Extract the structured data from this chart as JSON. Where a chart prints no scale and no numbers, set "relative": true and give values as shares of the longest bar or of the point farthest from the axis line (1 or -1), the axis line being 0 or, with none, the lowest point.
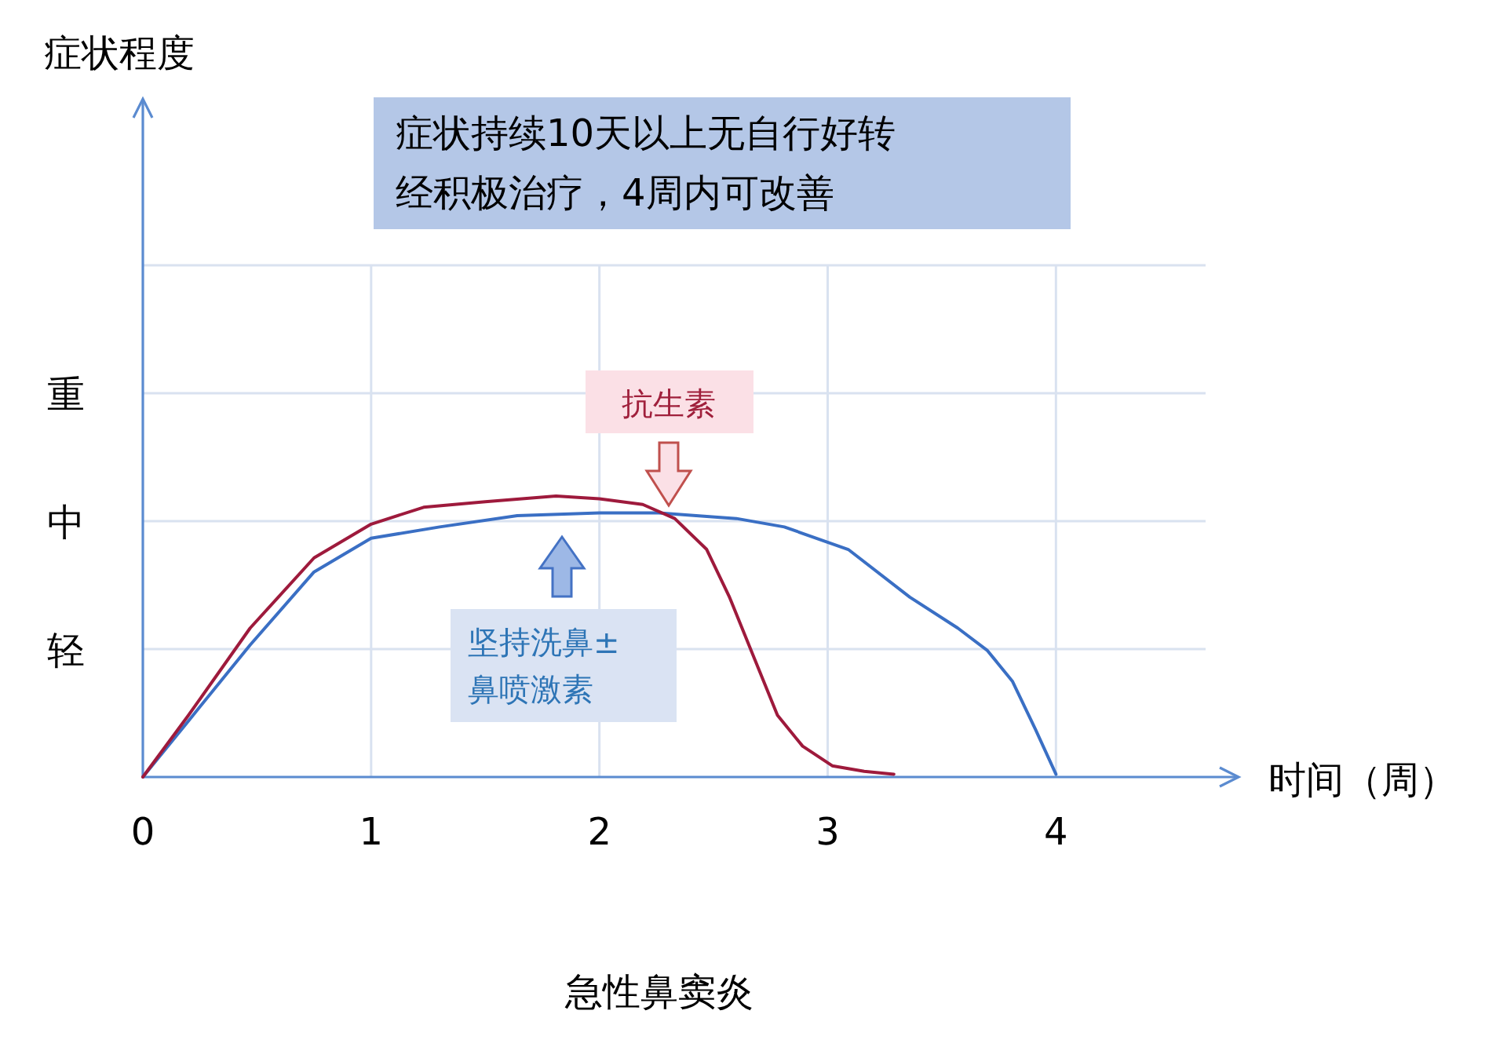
{
  "chart_data": {
    "type": "line",
    "title": "急性鼻窦炎",
    "xlabel": "时间（周）",
    "xlim": [
      0,
      4.8
    ],
    "xticks": [
      0,
      1,
      2,
      3,
      4
    ],
    "relative": true,
    "grid": true,
    "series": [
      {
        "color": "#3a6fc4",
        "x": [
          0,
          0.2,
          0.47,
          0.75,
          1,
          1.3,
          1.64,
          2,
          2.26,
          2.6,
          2.81,
          3.09,
          3.36,
          3.57,
          3.7,
          3.81,
          3.91,
          4
        ],
        "values": [
          0,
          0.2,
          0.47,
          0.73,
          0.85,
          0.89,
          0.93,
          0.94,
          0.94,
          0.92,
          0.89,
          0.81,
          0.64,
          0.53,
          0.45,
          0.34,
          0.17,
          0.01
        ]
      },
      {
        "color": "#9e1a3c",
        "x": [
          0,
          0.2,
          0.47,
          0.75,
          1,
          1.23,
          1.5,
          1.81,
          2,
          2.19,
          2.33,
          2.47,
          2.57,
          2.68,
          2.78,
          2.89,
          3.02,
          3.16,
          3.29
        ],
        "values": [
          0,
          0.22,
          0.53,
          0.78,
          0.9,
          0.96,
          0.98,
          1,
          0.99,
          0.97,
          0.92,
          0.81,
          0.64,
          0.42,
          0.22,
          0.11,
          0.04,
          0.02,
          0.01
        ]
      }
    ],
    "annotations": [
      "症状持续10天以上无自行好转",
      "经积极治疗，4周内可改善",
      "抗生素",
      "坚持洗鼻±",
      "鼻喷激素",
      "重",
      "中",
      "轻",
      "症状程度"
    ]
  }
}
